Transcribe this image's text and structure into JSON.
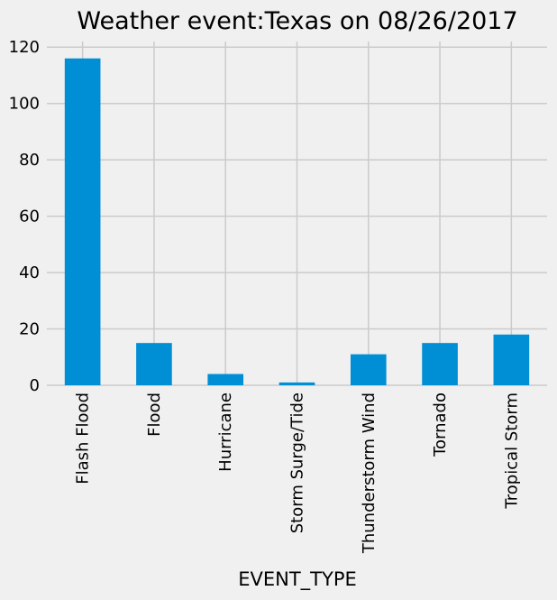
{
  "chart_data": {
    "type": "bar",
    "title": "Weather event:Texas on 08/26/2017",
    "xlabel": "EVENT_TYPE",
    "ylabel": "",
    "categories": [
      "Flash Flood",
      "Flood",
      "Hurricane",
      "Storm Surge/Tide",
      "Thunderstorm Wind",
      "Tornado",
      "Tropical Storm"
    ],
    "values": [
      116,
      15,
      4,
      1,
      11,
      15,
      18
    ],
    "ylim": [
      0,
      122
    ],
    "yticks": [
      0,
      20,
      40,
      60,
      80,
      100,
      120
    ],
    "grid": true,
    "legend": "none",
    "colors": {
      "bar": "#008fd5",
      "background": "#f0f0f0",
      "grid": "#cbcbcb"
    }
  }
}
